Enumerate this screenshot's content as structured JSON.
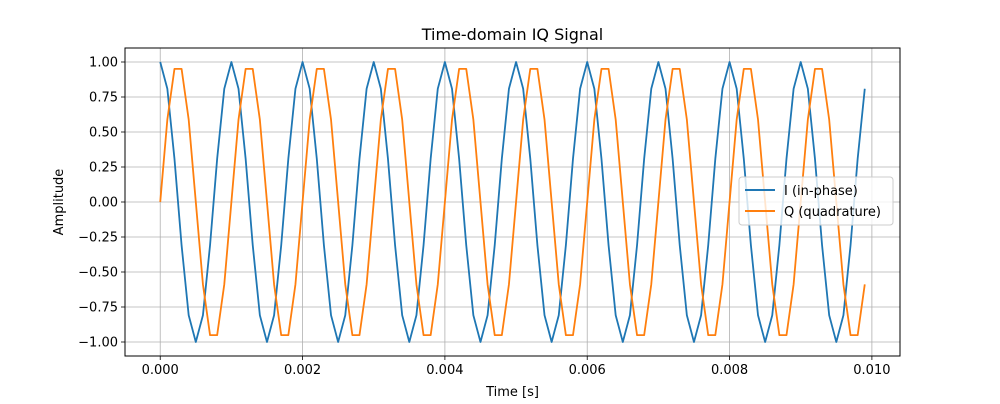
{
  "chart_data": {
    "type": "line",
    "title": "Time-domain IQ Signal",
    "xlabel": "Time [s]",
    "ylabel": "Amplitude",
    "xlim": [
      -0.000495,
      0.010395
    ],
    "ylim": [
      -1.1,
      1.1
    ],
    "grid": true,
    "legend_position": "center-right",
    "x_ticks": [
      0.0,
      0.002,
      0.004,
      0.006,
      0.008,
      0.01
    ],
    "x_tick_labels": [
      "0.000",
      "0.002",
      "0.004",
      "0.006",
      "0.008",
      "0.010"
    ],
    "y_ticks": [
      -1.0,
      -0.75,
      -0.5,
      -0.25,
      0.0,
      0.25,
      0.5,
      0.75,
      1.0
    ],
    "y_tick_labels": [
      "−1.00",
      "−0.75",
      "−0.50",
      "−0.25",
      "0.00",
      "0.25",
      "0.50",
      "0.75",
      "1.00"
    ],
    "x": [
      0.0,
      0.0001,
      0.0002,
      0.0003,
      0.0004,
      0.0005,
      0.0006,
      0.0007,
      0.0008,
      0.0009,
      0.001,
      0.0011,
      0.0012,
      0.0013,
      0.0014,
      0.0015,
      0.0016,
      0.0017,
      0.0018,
      0.0019,
      0.002,
      0.0021,
      0.0022,
      0.0023,
      0.0024,
      0.0025,
      0.0026,
      0.0027,
      0.0028,
      0.0029,
      0.003,
      0.0031,
      0.0032,
      0.0033,
      0.0034,
      0.0035,
      0.0036,
      0.0037,
      0.0038,
      0.0039,
      0.004,
      0.0041,
      0.0042,
      0.0043,
      0.0044,
      0.0045,
      0.0046,
      0.0047,
      0.0048,
      0.0049,
      0.005,
      0.0051,
      0.0052,
      0.0053,
      0.0054,
      0.0055,
      0.0056,
      0.0057,
      0.0058,
      0.0059,
      0.006,
      0.0061,
      0.0062,
      0.0063,
      0.0064,
      0.0065,
      0.0066,
      0.0067,
      0.0068,
      0.0069,
      0.007,
      0.0071,
      0.0072,
      0.0073,
      0.0074,
      0.0075,
      0.0076,
      0.0077,
      0.0078,
      0.0079,
      0.008,
      0.0081,
      0.0082,
      0.0083,
      0.0084,
      0.0085,
      0.0086,
      0.0087,
      0.0088,
      0.0089,
      0.009,
      0.0091,
      0.0092,
      0.0093,
      0.0094,
      0.0095,
      0.0096,
      0.0097,
      0.0098,
      0.0099
    ],
    "series": [
      {
        "name": "I (in-phase)",
        "color": "#1f77b4",
        "values": [
          1.0,
          0.809,
          0.309,
          -0.309,
          -0.809,
          -1.0,
          -0.809,
          -0.309,
          0.309,
          0.809,
          1.0,
          0.809,
          0.309,
          -0.309,
          -0.809,
          -1.0,
          -0.809,
          -0.309,
          0.309,
          0.809,
          1.0,
          0.809,
          0.309,
          -0.309,
          -0.809,
          -1.0,
          -0.809,
          -0.309,
          0.309,
          0.809,
          1.0,
          0.809,
          0.309,
          -0.309,
          -0.809,
          -1.0,
          -0.809,
          -0.309,
          0.309,
          0.809,
          1.0,
          0.809,
          0.309,
          -0.309,
          -0.809,
          -1.0,
          -0.809,
          -0.309,
          0.309,
          0.809,
          1.0,
          0.809,
          0.309,
          -0.309,
          -0.809,
          -1.0,
          -0.809,
          -0.309,
          0.309,
          0.809,
          1.0,
          0.809,
          0.309,
          -0.309,
          -0.809,
          -1.0,
          -0.809,
          -0.309,
          0.309,
          0.809,
          1.0,
          0.809,
          0.309,
          -0.309,
          -0.809,
          -1.0,
          -0.809,
          -0.309,
          0.309,
          0.809,
          1.0,
          0.809,
          0.309,
          -0.309,
          -0.809,
          -1.0,
          -0.809,
          -0.309,
          0.309,
          0.809,
          1.0,
          0.809,
          0.309,
          -0.309,
          -0.809,
          -1.0,
          -0.809,
          -0.309,
          0.309,
          0.809
        ]
      },
      {
        "name": "Q (quadrature)",
        "color": "#ff7f0e",
        "values": [
          0.0,
          0.588,
          0.951,
          0.951,
          0.588,
          0.0,
          -0.588,
          -0.951,
          -0.951,
          -0.588,
          0.0,
          0.588,
          0.951,
          0.951,
          0.588,
          0.0,
          -0.588,
          -0.951,
          -0.951,
          -0.588,
          0.0,
          0.588,
          0.951,
          0.951,
          0.588,
          0.0,
          -0.588,
          -0.951,
          -0.951,
          -0.588,
          0.0,
          0.588,
          0.951,
          0.951,
          0.588,
          0.0,
          -0.588,
          -0.951,
          -0.951,
          -0.588,
          0.0,
          0.588,
          0.951,
          0.951,
          0.588,
          0.0,
          -0.588,
          -0.951,
          -0.951,
          -0.588,
          0.0,
          0.588,
          0.951,
          0.951,
          0.588,
          0.0,
          -0.588,
          -0.951,
          -0.951,
          -0.588,
          0.0,
          0.588,
          0.951,
          0.951,
          0.588,
          0.0,
          -0.588,
          -0.951,
          -0.951,
          -0.588,
          0.0,
          0.588,
          0.951,
          0.951,
          0.588,
          0.0,
          -0.588,
          -0.951,
          -0.951,
          -0.588,
          0.0,
          0.588,
          0.951,
          0.951,
          0.588,
          0.0,
          -0.588,
          -0.951,
          -0.951,
          -0.588,
          0.0,
          0.588,
          0.951,
          0.951,
          0.588,
          0.0,
          -0.588,
          -0.951,
          -0.951,
          -0.588
        ]
      }
    ]
  }
}
